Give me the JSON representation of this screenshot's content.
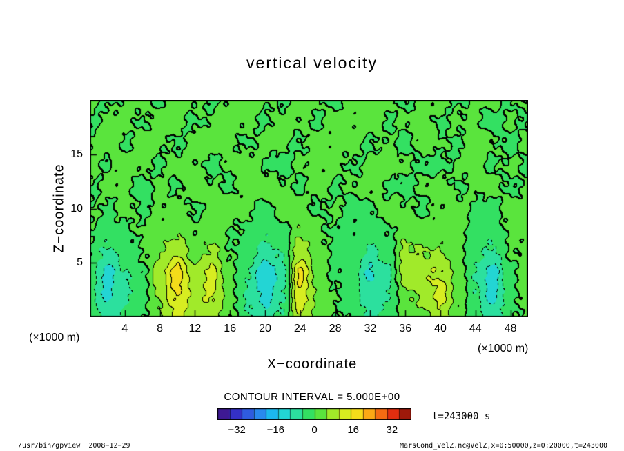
{
  "title": "vertical velocity",
  "axes": {
    "x_label": "X−coordinate",
    "z_label": "Z−coordinate",
    "x_unit": "(×1000 m)",
    "z_unit": "(×1000 m)",
    "x_ticks": [
      4,
      8,
      12,
      16,
      20,
      24,
      28,
      32,
      36,
      40,
      44,
      48
    ],
    "z_ticks": [
      5,
      10,
      15
    ],
    "x_range": [
      0,
      50
    ],
    "z_range": [
      0,
      20
    ]
  },
  "contour_note": "CONTOUR INTERVAL =  5.000E+00",
  "time_label": "t=243000 s",
  "colorbar": {
    "range": [
      -40,
      40
    ],
    "interval": 5,
    "ticks": [
      {
        "value": -32,
        "label": "−32"
      },
      {
        "value": -16,
        "label": "−16"
      },
      {
        "value": 0,
        "label": "0"
      },
      {
        "value": 16,
        "label": "16"
      },
      {
        "value": 32,
        "label": "32"
      }
    ]
  },
  "footer": {
    "left": "/usr/bin/gpview  2008−12−29",
    "right": "MarsCond_VelZ.nc@VelZ,x=0:50000,z=0:20000,t=243000"
  },
  "chart_data": {
    "type": "heatmap",
    "subtype": "filled-contour",
    "title": "vertical velocity",
    "xlabel": "X-coordinate (×1000 m)",
    "ylabel": "Z-coordinate (×1000 m)",
    "contour_interval": 5,
    "value_range": [
      -40,
      40
    ],
    "negative_contours": "dashed",
    "zero_contour": "thick",
    "x": [
      0,
      2,
      4,
      6,
      8,
      10,
      12,
      14,
      16,
      18,
      20,
      22,
      24,
      26,
      28,
      30,
      32,
      34,
      36,
      38,
      40,
      42,
      44,
      46,
      48,
      50
    ],
    "z": [
      0,
      2,
      4,
      6,
      8,
      10,
      12,
      14,
      16,
      18,
      20
    ],
    "values": [
      [
        -2,
        -7,
        -4,
        -1,
        4,
        11,
        6,
        7,
        1,
        -4,
        -8,
        -4,
        10,
        3,
        0,
        -1,
        -6,
        -4,
        3,
        4,
        8,
        3,
        -3,
        -8,
        -1,
        1
      ],
      [
        -4,
        -11,
        -6,
        -2,
        6,
        16,
        8,
        11,
        2,
        -6,
        -12,
        -6,
        14,
        4,
        0,
        -2,
        -9,
        -6,
        4,
        6,
        12,
        4,
        -4,
        -12,
        -2,
        2
      ],
      [
        -2,
        -12,
        -5,
        -1,
        8,
        18,
        6,
        12,
        1,
        -5,
        -14,
        -8,
        16,
        3,
        -1,
        -3,
        -11,
        -7,
        8,
        9,
        10,
        3,
        -5,
        -13,
        -1,
        3
      ],
      [
        -1,
        -6,
        -3,
        0,
        4,
        9,
        3,
        6,
        0,
        -3,
        -7,
        -4,
        8,
        2,
        -1,
        -2,
        -6,
        -3,
        6,
        5,
        5,
        2,
        -3,
        -6,
        0,
        2
      ],
      [
        0,
        -3,
        -1,
        1,
        2,
        4,
        1,
        3,
        0,
        -1,
        -3,
        -2,
        4,
        1,
        -1,
        -1,
        -3,
        -1,
        3,
        2,
        2,
        1,
        -1,
        -3,
        1,
        1
      ],
      [
        1,
        -1,
        2,
        -1,
        1,
        2,
        -1,
        2,
        3,
        1,
        -2,
        3,
        2,
        -1,
        1,
        -2,
        -1,
        2,
        1,
        -1,
        1,
        2,
        -1,
        -2,
        2,
        1
      ],
      [
        -1,
        2,
        1,
        -2,
        2,
        -1,
        3,
        1,
        -1,
        2,
        4,
        1,
        -1,
        2,
        -1,
        1,
        2,
        -1,
        -2,
        1,
        3,
        -1,
        1,
        2,
        -1,
        1
      ],
      [
        2,
        -1,
        3,
        1,
        -1,
        2,
        1,
        -2,
        1,
        3,
        -1,
        -2,
        1,
        1,
        2,
        -1,
        1,
        3,
        1,
        -1,
        -2,
        1,
        2,
        -1,
        1,
        -1
      ],
      [
        1,
        3,
        -1,
        2,
        1,
        -1,
        2,
        3,
        1,
        -1,
        2,
        1,
        -1,
        3,
        1,
        2,
        -1,
        1,
        -2,
        2,
        1,
        -1,
        3,
        1,
        -2,
        2
      ],
      [
        -1,
        1,
        2,
        -1,
        3,
        1,
        -1,
        1,
        2,
        1,
        -1,
        2,
        1,
        -1,
        2,
        1,
        3,
        -1,
        1,
        2,
        -1,
        1,
        1,
        -2,
        1,
        -1
      ],
      [
        1,
        -1,
        1,
        2,
        -1,
        2,
        1,
        -1,
        1,
        2,
        1,
        -1,
        2,
        1,
        -1,
        2,
        1,
        2,
        -1,
        1,
        2,
        -1,
        1,
        1,
        -1,
        1
      ]
    ],
    "colormap_stops": [
      [
        -40,
        "#440e7a"
      ],
      [
        -32,
        "#3333cc"
      ],
      [
        -24,
        "#2d7bee"
      ],
      [
        -16,
        "#19c7ee"
      ],
      [
        -10,
        "#2adfc2"
      ],
      [
        -5,
        "#2ee07a"
      ],
      [
        0,
        "#38e14b"
      ],
      [
        5,
        "#7ce72f"
      ],
      [
        10,
        "#c6ee24"
      ],
      [
        16,
        "#f2ec1c"
      ],
      [
        24,
        "#ff9914"
      ],
      [
        32,
        "#e93110"
      ],
      [
        40,
        "#7c0f08"
      ]
    ]
  }
}
